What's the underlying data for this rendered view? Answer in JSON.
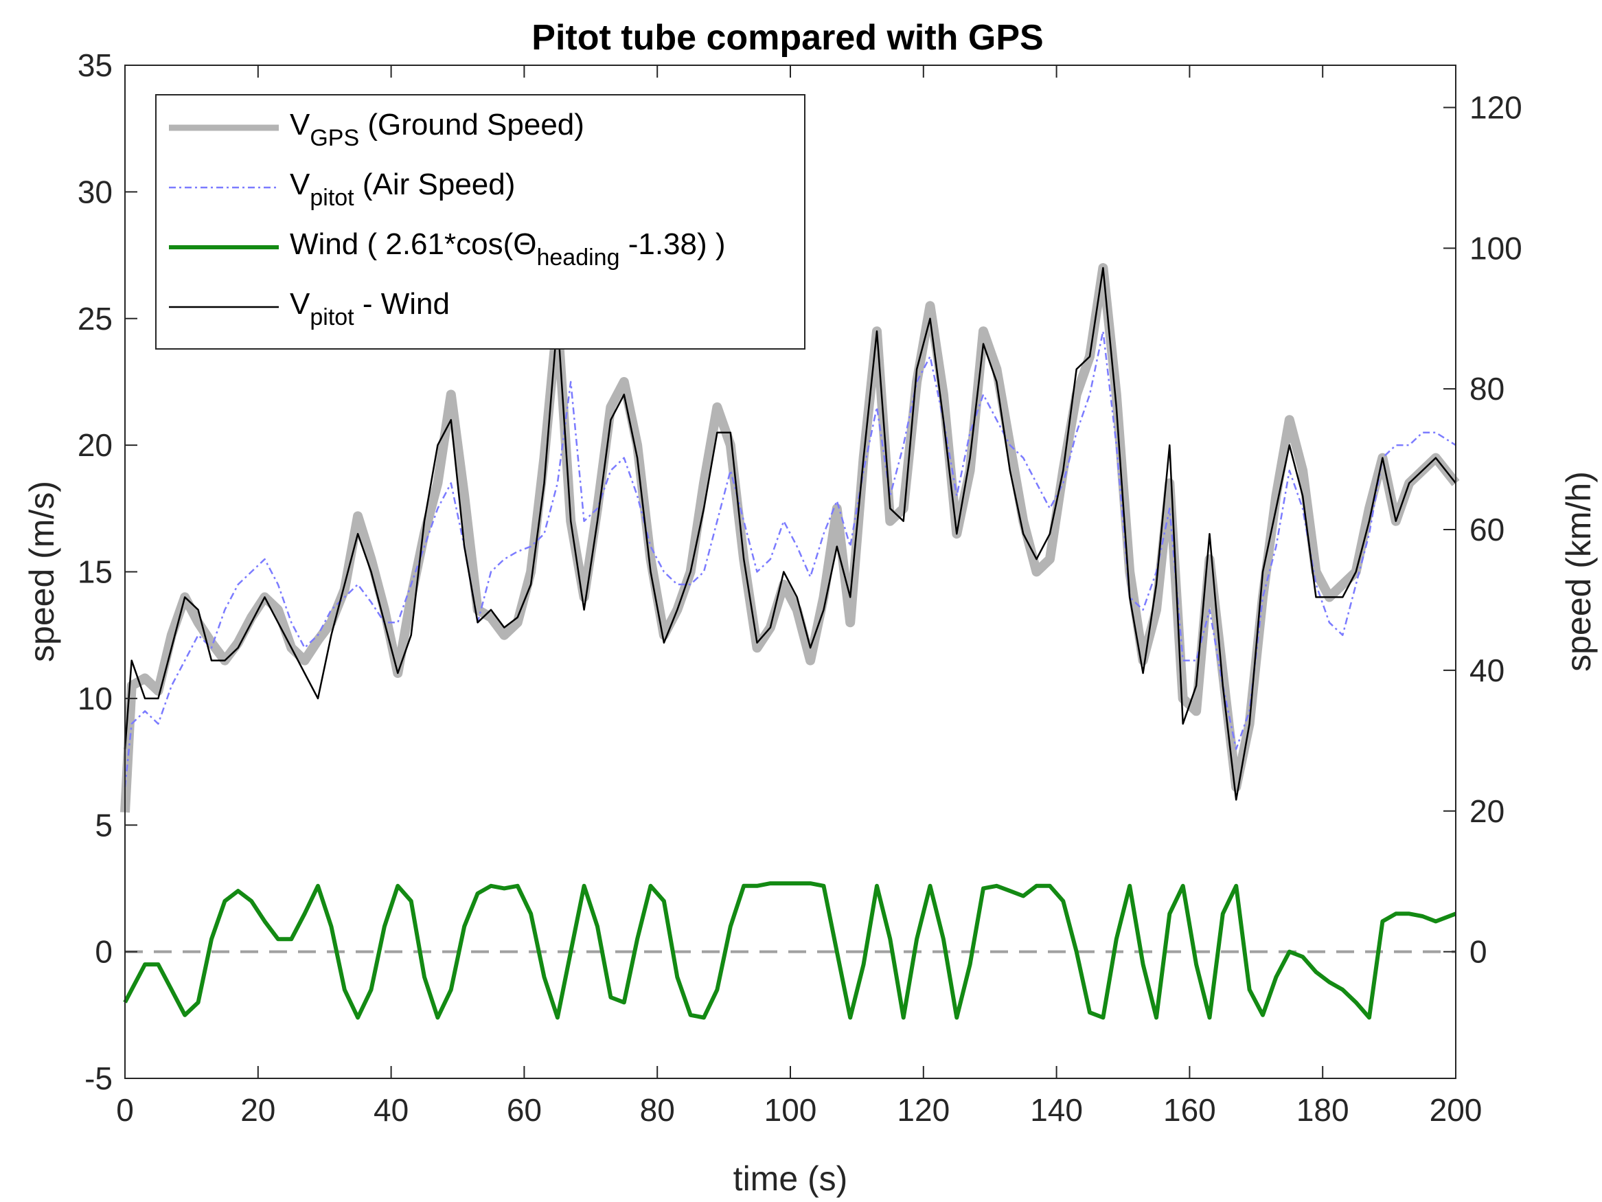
{
  "chart_data": {
    "type": "line",
    "title": "Pitot tube compared with GPS",
    "xlabel": "time (s)",
    "ylabel": "speed (m/s)",
    "y2label": "speed (km/h)",
    "xlim": [
      0,
      200
    ],
    "ylim": [
      -5,
      35
    ],
    "y2lim": [
      -18,
      126
    ],
    "xticks": [
      "0",
      "20",
      "40",
      "60",
      "80",
      "100",
      "120",
      "140",
      "160",
      "180",
      "200"
    ],
    "yticks": [
      "-5",
      "0",
      "5",
      "10",
      "15",
      "20",
      "25",
      "30",
      "35"
    ],
    "y2ticks": [
      "0",
      "20",
      "40",
      "60",
      "80",
      "100",
      "120"
    ],
    "legend_position": "top-left",
    "zero_line": {
      "y": 0,
      "style": "dashed",
      "color": "#A0A0A0"
    },
    "series": [
      {
        "name": "V_GPS (Ground Speed)",
        "label_main": "V",
        "label_sub": "GPS",
        "label_rest": " (Ground Speed)",
        "color": "#B4B4B4",
        "style": "solid-thick",
        "x": [
          0,
          1,
          3,
          5,
          7,
          9,
          11,
          13,
          15,
          17,
          19,
          21,
          23,
          25,
          27,
          29,
          31,
          33,
          35,
          37,
          39,
          41,
          43,
          45,
          47,
          49,
          51,
          53,
          55,
          57,
          59,
          61,
          63,
          65,
          67,
          69,
          71,
          73,
          75,
          77,
          79,
          81,
          83,
          85,
          87,
          89,
          91,
          93,
          95,
          97,
          99,
          101,
          103,
          105,
          107,
          109,
          111,
          113,
          115,
          117,
          119,
          121,
          123,
          125,
          127,
          129,
          131,
          133,
          135,
          137,
          139,
          141,
          143,
          145,
          147,
          149,
          151,
          153,
          155,
          157,
          159,
          161,
          163,
          165,
          167,
          169,
          171,
          173,
          175,
          177,
          179,
          181,
          183,
          185,
          187,
          189,
          191,
          193,
          195,
          197,
          200
        ],
        "values": [
          5.5,
          10.5,
          10.8,
          10.3,
          12.5,
          14.0,
          13.0,
          12.2,
          11.5,
          12.2,
          13.2,
          14.0,
          13.5,
          12.0,
          11.5,
          12.3,
          13.0,
          14.3,
          17.2,
          15.5,
          13.5,
          11.0,
          14.0,
          16.5,
          18.5,
          22.0,
          18.0,
          13.5,
          13.2,
          12.5,
          13.0,
          15.0,
          19.5,
          25.0,
          17.0,
          14.0,
          17.5,
          21.5,
          22.5,
          20.0,
          15.5,
          12.5,
          13.5,
          15.0,
          18.5,
          21.5,
          20.0,
          15.5,
          12.0,
          12.8,
          14.5,
          13.5,
          11.5,
          14.0,
          17.5,
          13.0,
          19.5,
          24.5,
          17.0,
          17.5,
          22.5,
          25.5,
          22.0,
          16.5,
          19.0,
          24.5,
          23.0,
          20.0,
          17.0,
          15.0,
          15.5,
          19.0,
          22.0,
          23.5,
          27.0,
          22.0,
          15.0,
          11.5,
          13.5,
          18.5,
          10.0,
          9.5,
          15.5,
          11.0,
          6.5,
          9.0,
          14.0,
          18.0,
          21.0,
          19.0,
          15.0,
          14.0,
          14.5,
          15.0,
          17.5,
          19.5,
          17.0,
          18.5,
          19.0,
          19.5,
          18.5
        ]
      },
      {
        "name": "V_pitot (Air Speed)",
        "label_main": "V",
        "label_sub": "pitot",
        "label_rest": " (Air Speed)",
        "color": "#7B7BFF",
        "style": "dashdot",
        "x": [
          0,
          1,
          3,
          5,
          7,
          9,
          11,
          13,
          15,
          17,
          19,
          21,
          23,
          25,
          27,
          29,
          31,
          33,
          35,
          37,
          39,
          41,
          43,
          45,
          47,
          49,
          51,
          53,
          55,
          57,
          59,
          61,
          63,
          65,
          67,
          69,
          71,
          73,
          75,
          77,
          79,
          81,
          83,
          85,
          87,
          89,
          91,
          93,
          95,
          97,
          99,
          101,
          103,
          105,
          107,
          109,
          111,
          113,
          115,
          117,
          119,
          121,
          123,
          125,
          127,
          129,
          131,
          133,
          135,
          137,
          139,
          141,
          143,
          145,
          147,
          149,
          151,
          153,
          155,
          157,
          159,
          161,
          163,
          165,
          167,
          169,
          171,
          173,
          175,
          177,
          179,
          181,
          183,
          185,
          187,
          189,
          191,
          193,
          195,
          197,
          200
        ],
        "values": [
          6.5,
          9.0,
          9.5,
          9.0,
          10.5,
          11.5,
          12.5,
          12.0,
          13.5,
          14.5,
          15.0,
          15.5,
          14.5,
          13.0,
          12.0,
          12.5,
          13.5,
          14.0,
          14.5,
          13.8,
          13.0,
          13.0,
          14.5,
          16.0,
          17.5,
          18.5,
          16.0,
          13.0,
          15.0,
          15.5,
          15.8,
          16.0,
          16.5,
          18.5,
          22.5,
          17.0,
          17.5,
          19.0,
          19.5,
          18.0,
          16.0,
          15.0,
          14.5,
          14.5,
          15.0,
          17.0,
          19.0,
          17.0,
          15.0,
          15.5,
          17.0,
          16.0,
          14.8,
          16.5,
          17.8,
          16.0,
          19.0,
          21.5,
          18.0,
          20.0,
          22.5,
          23.5,
          21.0,
          18.0,
          20.5,
          22.0,
          21.0,
          20.0,
          19.5,
          18.5,
          17.5,
          18.5,
          20.5,
          22.0,
          24.5,
          20.0,
          14.0,
          13.5,
          15.0,
          17.5,
          11.5,
          11.5,
          13.5,
          10.5,
          8.0,
          9.5,
          14.0,
          16.0,
          19.0,
          17.5,
          14.5,
          13.0,
          12.5,
          14.5,
          16.5,
          19.5,
          20.0,
          20.0,
          20.5,
          20.5,
          20.0
        ]
      },
      {
        "name": "Wind ( 2.61*cos(Θheading -1.38) )",
        "label_main": "Wind ( 2.61*cos(Θ",
        "label_sub": "heading",
        "label_rest": " -1.38) )",
        "color": "#138A13",
        "style": "solid-thick",
        "x": [
          0,
          1,
          3,
          5,
          7,
          9,
          11,
          13,
          15,
          17,
          19,
          21,
          23,
          25,
          27,
          29,
          31,
          33,
          35,
          37,
          39,
          41,
          43,
          45,
          47,
          49,
          51,
          53,
          55,
          57,
          59,
          61,
          63,
          65,
          67,
          69,
          71,
          73,
          75,
          77,
          79,
          81,
          83,
          85,
          87,
          89,
          91,
          93,
          95,
          97,
          99,
          101,
          103,
          105,
          107,
          109,
          111,
          113,
          115,
          117,
          119,
          121,
          123,
          125,
          127,
          129,
          131,
          133,
          135,
          137,
          139,
          141,
          143,
          145,
          147,
          149,
          151,
          153,
          155,
          157,
          159,
          161,
          163,
          165,
          167,
          169,
          171,
          173,
          175,
          177,
          179,
          181,
          183,
          185,
          187,
          189,
          191,
          193,
          195,
          197,
          200
        ],
        "values": [
          -2.0,
          -1.5,
          -0.5,
          -0.5,
          -1.5,
          -2.5,
          -2.0,
          0.5,
          2.0,
          2.4,
          2.0,
          1.2,
          0.5,
          0.5,
          1.5,
          2.6,
          1.0,
          -1.5,
          -2.6,
          -1.5,
          1.0,
          2.6,
          2.0,
          -1.0,
          -2.6,
          -1.5,
          1.0,
          2.3,
          2.6,
          2.5,
          2.6,
          1.5,
          -1.0,
          -2.6,
          0.0,
          2.6,
          1.0,
          -1.8,
          -2.0,
          0.5,
          2.6,
          2.0,
          -1.0,
          -2.5,
          -2.6,
          -1.5,
          1.0,
          2.6,
          2.6,
          2.7,
          2.7,
          2.7,
          2.7,
          2.6,
          0.0,
          -2.6,
          -0.5,
          2.6,
          0.5,
          -2.6,
          0.5,
          2.6,
          0.5,
          -2.6,
          -0.5,
          2.5,
          2.6,
          2.4,
          2.2,
          2.6,
          2.6,
          2.0,
          0.0,
          -2.4,
          -2.6,
          0.5,
          2.6,
          -0.5,
          -2.6,
          1.5,
          2.6,
          -0.5,
          -2.6,
          1.5,
          2.6,
          -1.5,
          -2.5,
          -1.0,
          0.0,
          -0.2,
          -0.8,
          -1.2,
          -1.5,
          -2.0,
          -2.6,
          1.2,
          1.5,
          1.5,
          1.4,
          1.2,
          1.5
        ]
      },
      {
        "name": "V_pitot - Wind",
        "label_main": "V",
        "label_sub": "pitot",
        "label_rest": " - Wind",
        "color": "#000000",
        "style": "solid-thin",
        "x": [
          0,
          1,
          3,
          5,
          7,
          9,
          11,
          13,
          15,
          17,
          19,
          21,
          23,
          25,
          27,
          29,
          31,
          33,
          35,
          37,
          39,
          41,
          43,
          45,
          47,
          49,
          51,
          53,
          55,
          57,
          59,
          61,
          63,
          65,
          67,
          69,
          71,
          73,
          75,
          77,
          79,
          81,
          83,
          85,
          87,
          89,
          91,
          93,
          95,
          97,
          99,
          101,
          103,
          105,
          107,
          109,
          111,
          113,
          115,
          117,
          119,
          121,
          123,
          125,
          127,
          129,
          131,
          133,
          135,
          137,
          139,
          141,
          143,
          145,
          147,
          149,
          151,
          153,
          155,
          157,
          159,
          161,
          163,
          165,
          167,
          169,
          171,
          173,
          175,
          177,
          179,
          181,
          183,
          185,
          187,
          189,
          191,
          193,
          195,
          197,
          200
        ],
        "values": [
          8.0,
          11.5,
          10.0,
          10.0,
          12.0,
          14.0,
          13.5,
          11.5,
          11.5,
          12.0,
          13.0,
          14.0,
          13.0,
          12.0,
          11.0,
          10.0,
          12.5,
          14.5,
          16.5,
          15.0,
          13.0,
          11.0,
          12.5,
          17.0,
          20.0,
          21.0,
          16.0,
          13.0,
          13.5,
          12.8,
          13.2,
          14.5,
          18.5,
          25.0,
          17.0,
          13.5,
          17.0,
          21.0,
          22.0,
          19.5,
          15.0,
          12.2,
          13.5,
          15.0,
          17.5,
          20.5,
          20.5,
          15.5,
          12.2,
          12.8,
          15.0,
          14.0,
          12.0,
          13.5,
          16.0,
          14.0,
          19.5,
          24.5,
          17.5,
          17.0,
          23.0,
          25.0,
          21.0,
          16.5,
          19.5,
          24.0,
          22.5,
          19.0,
          16.5,
          15.5,
          16.5,
          19.0,
          23.0,
          23.5,
          27.0,
          21.5,
          14.0,
          11.0,
          14.5,
          20.0,
          9.0,
          10.5,
          16.5,
          10.5,
          6.0,
          9.0,
          15.0,
          17.5,
          20.0,
          18.0,
          14.0,
          14.0,
          14.0,
          15.0,
          17.0,
          19.5,
          17.0,
          18.5,
          19.0,
          19.5,
          18.5
        ]
      }
    ]
  }
}
